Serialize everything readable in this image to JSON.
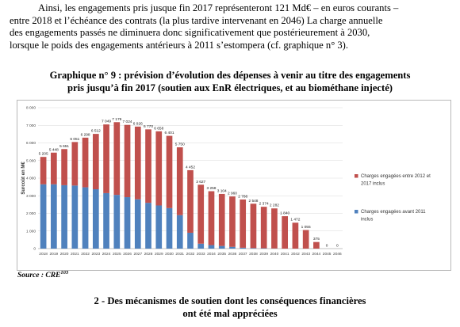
{
  "paragraph": {
    "line1": "Ainsi, les engagements pris jusque fin 2017 représenteront 121 Md€ – en euros courants –",
    "line2": "entre 2018 et l’échéance des contrats (la plus tardive intervenant en 2046) La charge annuelle",
    "line3": "des engagements passés ne diminuera donc significativement que postérieurement à 2030,",
    "line4": "lorsque le poids des engagements antérieurs à 2011 s’estompera (cf. graphique n° 3)."
  },
  "chart_title": {
    "line1": "Graphique n° 9 : prévision d’évolution des dépenses à venir au titre des engagements",
    "line2": "pris jusqu’à fin 2017 (soutien aux EnR électriques, et au biométhane injecté)"
  },
  "chart_data": {
    "type": "bar",
    "stacked": true,
    "ylabel": "Surcoût en M€",
    "ylim": [
      0,
      8000
    ],
    "yticks": [
      "0",
      "1 000",
      "2 000",
      "3 000",
      "4 000",
      "5 000",
      "6 000",
      "7 000",
      "8 000"
    ],
    "grid": true,
    "legend_position": "right",
    "categories": [
      "2018",
      "2019",
      "2020",
      "2021",
      "2022",
      "2023",
      "2024",
      "2025",
      "2026",
      "2027",
      "2028",
      "2029",
      "2030",
      "2031",
      "2032",
      "2033",
      "2034",
      "2035",
      "2036",
      "2037",
      "2038",
      "2039",
      "2040",
      "2041",
      "2042",
      "2043",
      "2044",
      "2045",
      "2046"
    ],
    "totals_labels": [
      "5 205",
      "5 448",
      "5 651",
      "6 051",
      "6 298",
      "6 512",
      "7 049",
      "7 179",
      "7 024",
      "6 926",
      "6 770",
      "6 658",
      "6 401",
      "5 750",
      "4 452",
      "3 627",
      "3 258",
      "3 104",
      "2 960",
      "2 788",
      "2 548",
      "2 374",
      "2 282",
      "1 840",
      "1 472",
      "1 055",
      "375",
      "0",
      "0"
    ],
    "series": [
      {
        "name": "Charges engagées avant 2011 inclus",
        "color": "#4f81bd",
        "values": [
          3650,
          3650,
          3600,
          3580,
          3480,
          3370,
          3150,
          3050,
          2920,
          2800,
          2600,
          2450,
          2300,
          1900,
          900,
          280,
          200,
          150,
          100,
          50,
          30,
          20,
          10,
          0,
          0,
          0,
          0,
          0,
          0
        ]
      },
      {
        "name": "Charges engagées entre 2012 et 2017 inclus",
        "color": "#c0504d",
        "values": [
          1555,
          1798,
          2051,
          2471,
          2818,
          3142,
          3899,
          4129,
          4104,
          4126,
          4170,
          4208,
          4101,
          3850,
          3552,
          3347,
          3058,
          2954,
          2860,
          2738,
          2518,
          2354,
          2272,
          1840,
          1472,
          1055,
          375,
          0,
          0
        ]
      }
    ]
  },
  "source": {
    "label": "Source : CRE",
    "footnote": "103"
  },
  "section_heading": {
    "line1": "2 - Des mécanismes de soutien dont les conséquences financières",
    "line2": "ont été mal appréciées"
  }
}
